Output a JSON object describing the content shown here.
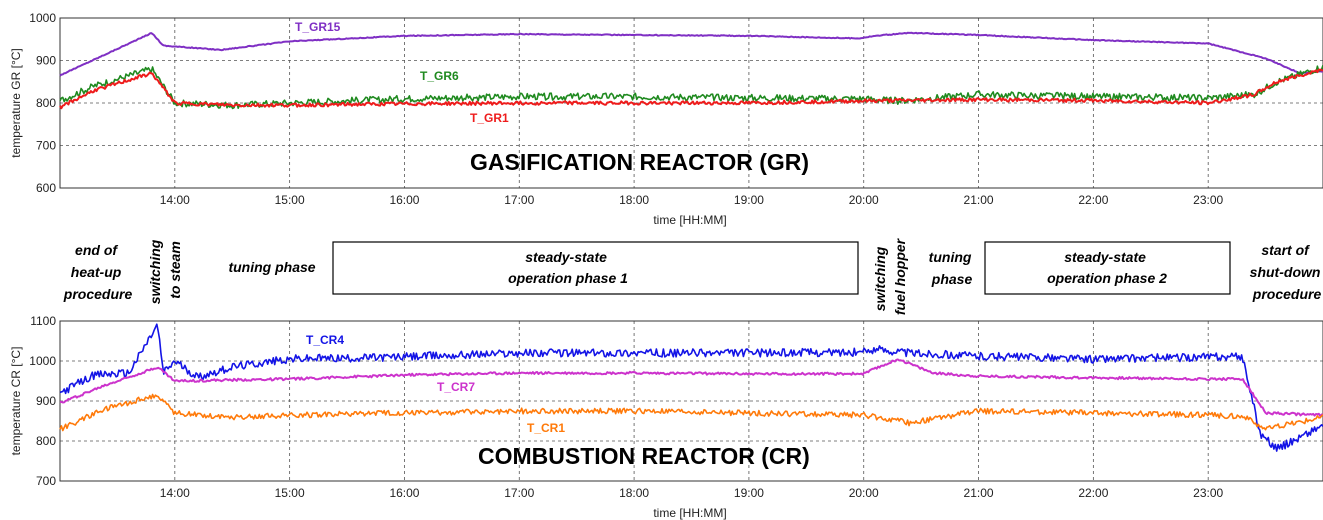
{
  "colors": {
    "T_GR15": "#7f2fc4",
    "T_GR6": "#1f8a1f",
    "T_GR1": "#ee1c1c",
    "T_CR4": "#1414e6",
    "T_CR7": "#cc33cc",
    "T_CR1": "#ff7a0a"
  },
  "phases": {
    "end_heatup": [
      "end of",
      "heat-up",
      "procedure"
    ],
    "switch_steam": [
      "switching",
      "to steam"
    ],
    "tuning1": "tuning phase",
    "ss1": [
      "steady-state",
      "operation phase 1"
    ],
    "switch_fuel": [
      "switching",
      "fuel hopper"
    ],
    "tuning2": [
      "tuning",
      "phase"
    ],
    "ss2": [
      "steady-state",
      "operation phase 2"
    ],
    "shutdown": [
      "start of",
      "shut-down",
      "procedure"
    ]
  },
  "chart_data": [
    {
      "type": "line",
      "title": "GASIFICATION REACTOR (GR)",
      "xlabel": "time [HH:MM]",
      "ylabel": "temperature GR [°C]",
      "xlim": [
        "13:00",
        "24:00"
      ],
      "ylim": [
        600,
        1000
      ],
      "xticks": [
        "14:00",
        "15:00",
        "16:00",
        "17:00",
        "18:00",
        "19:00",
        "20:00",
        "21:00",
        "22:00",
        "23:00"
      ],
      "yticks": [
        600,
        700,
        800,
        900,
        1000
      ],
      "grid": true,
      "x_unit": "hours",
      "series": [
        {
          "name": "T_GR15",
          "x": [
            13.0,
            13.4,
            13.8,
            13.9,
            14.4,
            15.0,
            16.0,
            17.0,
            18.0,
            19.0,
            19.95,
            20.1,
            20.4,
            21.0,
            22.0,
            23.0,
            23.5,
            23.8,
            24.0
          ],
          "y": [
            865,
            915,
            965,
            935,
            925,
            945,
            958,
            962,
            960,
            958,
            952,
            958,
            965,
            960,
            948,
            940,
            905,
            870,
            875
          ],
          "noise": 1
        },
        {
          "name": "T_GR6",
          "x": [
            13.0,
            13.3,
            13.8,
            14.0,
            14.5,
            15.0,
            16.0,
            17.0,
            18.0,
            19.0,
            20.0,
            20.3,
            21.0,
            22.0,
            23.0,
            23.4,
            23.6,
            24.0
          ],
          "y": [
            805,
            840,
            880,
            800,
            795,
            800,
            810,
            815,
            815,
            812,
            810,
            805,
            820,
            815,
            812,
            820,
            850,
            885
          ],
          "noise": 8
        },
        {
          "name": "T_GR1",
          "x": [
            13.0,
            13.3,
            13.8,
            14.0,
            14.5,
            15.0,
            16.0,
            17.0,
            18.0,
            19.0,
            20.0,
            21.0,
            22.0,
            23.0,
            23.4,
            23.6,
            24.0
          ],
          "y": [
            790,
            830,
            870,
            800,
            795,
            795,
            798,
            800,
            800,
            800,
            805,
            808,
            806,
            800,
            820,
            850,
            880
          ],
          "noise": 4
        }
      ]
    },
    {
      "type": "line",
      "title": "COMBUSTION REACTOR (CR)",
      "xlabel": "time [HH:MM]",
      "ylabel": "temperature CR [°C]",
      "xlim": [
        "13:00",
        "24:00"
      ],
      "ylim": [
        700,
        1100
      ],
      "xticks": [
        "14:00",
        "15:00",
        "16:00",
        "17:00",
        "18:00",
        "19:00",
        "20:00",
        "21:00",
        "22:00",
        "23:00"
      ],
      "yticks": [
        700,
        800,
        900,
        1000,
        1100
      ],
      "grid": true,
      "x_unit": "hours",
      "series": [
        {
          "name": "T_CR4",
          "x": [
            13.0,
            13.3,
            13.6,
            13.85,
            13.9,
            14.0,
            14.2,
            14.5,
            15.0,
            16.0,
            17.0,
            18.0,
            19.0,
            20.0,
            20.1,
            20.4,
            21.0,
            22.0,
            23.0,
            23.3,
            23.45,
            23.6,
            24.0
          ],
          "y": [
            920,
            965,
            970,
            1090,
            970,
            1000,
            960,
            985,
            1005,
            1010,
            1020,
            1020,
            1020,
            1022,
            1030,
            1020,
            1012,
            1005,
            1010,
            1010,
            820,
            780,
            840
          ],
          "noise": 10
        },
        {
          "name": "T_CR7",
          "x": [
            13.0,
            13.4,
            13.85,
            14.0,
            15.0,
            16.0,
            17.0,
            18.0,
            19.0,
            20.0,
            20.3,
            20.6,
            21.0,
            22.0,
            23.0,
            23.3,
            23.5,
            24.0
          ],
          "y": [
            895,
            940,
            985,
            950,
            955,
            965,
            970,
            970,
            968,
            968,
            1005,
            970,
            962,
            958,
            955,
            955,
            870,
            865
          ],
          "noise": 3
        },
        {
          "name": "T_CR1",
          "x": [
            13.0,
            13.4,
            13.85,
            14.0,
            14.5,
            15.0,
            16.0,
            17.0,
            18.0,
            19.0,
            20.0,
            20.4,
            21.0,
            22.0,
            23.0,
            23.3,
            23.5,
            24.0
          ],
          "y": [
            830,
            880,
            915,
            870,
            860,
            865,
            870,
            875,
            875,
            870,
            865,
            845,
            875,
            870,
            865,
            862,
            830,
            860
          ],
          "noise": 7
        }
      ]
    }
  ]
}
